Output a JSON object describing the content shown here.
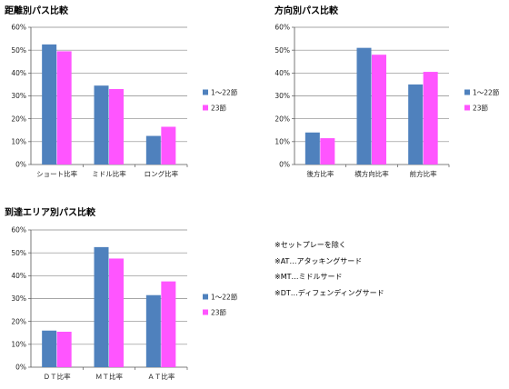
{
  "colors": {
    "series1": "#4f81bd",
    "series2": "#ff55ff",
    "axis": "#555555",
    "grid": "#888888"
  },
  "notes": [
    "※セットプレーを除く",
    "※AT…アタッキングサード",
    "※MT…ミドルサード",
    "※DT…ディフェンディングサード"
  ],
  "chart_data": [
    {
      "type": "bar",
      "title": "距離別パス比較",
      "categories": [
        "ショート比率",
        "ミドル比率",
        "ロング比率"
      ],
      "series": [
        {
          "name": "1〜22節",
          "values": [
            52.5,
            34.5,
            12.5
          ]
        },
        {
          "name": "23節",
          "values": [
            49.5,
            33,
            16.5
          ]
        }
      ],
      "ylim": [
        0,
        60
      ],
      "yticks": [
        "0%",
        "10%",
        "20%",
        "30%",
        "40%",
        "50%",
        "60%"
      ],
      "grid": true,
      "legend": "right"
    },
    {
      "type": "bar",
      "title": "方向別パス比較",
      "categories": [
        "後方比率",
        "横方向比率",
        "前方比率"
      ],
      "series": [
        {
          "name": "1〜22節",
          "values": [
            14,
            51,
            35
          ]
        },
        {
          "name": "23節",
          "values": [
            11.5,
            48,
            40.5
          ]
        }
      ],
      "ylim": [
        0,
        60
      ],
      "yticks": [
        "0%",
        "10%",
        "20%",
        "30%",
        "40%",
        "50%",
        "60%"
      ],
      "grid": true,
      "legend": "right"
    },
    {
      "type": "bar",
      "title": "到達エリア別パス比較",
      "categories": [
        "ＤＴ比率",
        "ＭＴ比率",
        "ＡＴ比率"
      ],
      "series": [
        {
          "name": "1〜22節",
          "values": [
            16,
            52.5,
            31.5
          ]
        },
        {
          "name": "23節",
          "values": [
            15.5,
            47.5,
            37.5
          ]
        }
      ],
      "ylim": [
        0,
        60
      ],
      "yticks": [
        "0%",
        "10%",
        "20%",
        "30%",
        "40%",
        "50%",
        "60%"
      ],
      "grid": true,
      "legend": "right"
    }
  ]
}
